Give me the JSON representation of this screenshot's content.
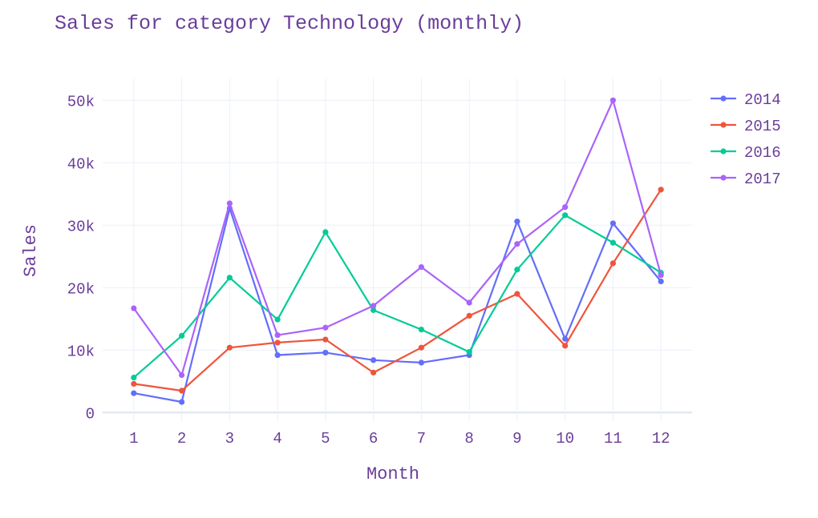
{
  "chart_data": {
    "type": "line",
    "title": "Sales for category Technology (monthly)",
    "xlabel": "Month",
    "ylabel": "Sales",
    "categories": [
      1,
      2,
      3,
      4,
      5,
      6,
      7,
      8,
      9,
      10,
      11,
      12
    ],
    "x_tick_labels": [
      "1",
      "2",
      "3",
      "4",
      "5",
      "6",
      "7",
      "8",
      "9",
      "10",
      "11",
      "12"
    ],
    "y_ticks": [
      0,
      10000,
      20000,
      30000,
      40000,
      50000
    ],
    "y_tick_labels": [
      "0",
      "10k",
      "20k",
      "30k",
      "40k",
      "50k"
    ],
    "ylim": [
      -1500,
      53500
    ],
    "xlim": [
      0.35,
      12.65
    ],
    "grid": true,
    "legend_position": "top-right",
    "series": [
      {
        "name": "2014",
        "color": "#636efa",
        "values": [
          3100,
          1700,
          32700,
          9200,
          9600,
          8400,
          8000,
          9200,
          30600,
          11800,
          30300,
          21000
        ]
      },
      {
        "name": "2015",
        "color": "#ef553b",
        "values": [
          4600,
          3500,
          10400,
          11200,
          11700,
          6400,
          10400,
          15500,
          19000,
          10700,
          23900,
          35700
        ]
      },
      {
        "name": "2016",
        "color": "#00cc96",
        "values": [
          5600,
          12300,
          21600,
          14900,
          28900,
          16400,
          13300,
          9700,
          22900,
          31600,
          27200,
          22400
        ]
      },
      {
        "name": "2017",
        "color": "#ab63fa",
        "values": [
          16700,
          6000,
          33500,
          12400,
          13600,
          17100,
          23300,
          17600,
          27000,
          32900,
          50000,
          22000
        ]
      }
    ]
  },
  "colors": {
    "text": "#6a3d9a",
    "grid": "#ebf0f8",
    "zeroline": "#dfe4ee"
  }
}
